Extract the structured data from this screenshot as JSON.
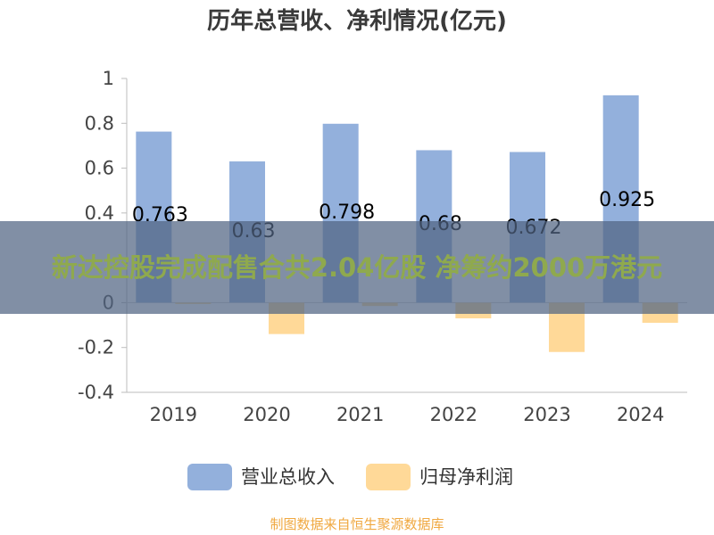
{
  "chart_data": {
    "type": "bar",
    "title": "历年总营收、净利情况(亿元)",
    "categories": [
      "2019",
      "2020",
      "2021",
      "2022",
      "2023",
      "2024"
    ],
    "series": [
      {
        "name": "营业总收入",
        "values": [
          0.763,
          0.63,
          0.798,
          0.68,
          0.672,
          0.925
        ],
        "color": "#93b0dc"
      },
      {
        "name": "归母净利润",
        "values": [
          -0.006,
          -0.14,
          -0.015,
          -0.07,
          -0.22,
          -0.09
        ],
        "color": "#ffd998"
      }
    ],
    "data_labels": [
      "0.763",
      "0.63",
      "0.798",
      "0.68",
      "0.672",
      "0.925"
    ],
    "y_ticks": [
      "1",
      "0.8",
      "0.6",
      "0.4",
      "0",
      "-0.2",
      "-0.4"
    ],
    "ylim": [
      -0.4,
      1
    ],
    "xlabel": "",
    "ylabel": "",
    "grid": false,
    "legend_position": "bottom",
    "source": "制图数据来自恒生聚源数据库"
  },
  "overlay": {
    "headline": "新达控股完成配售合共2.04亿股 净筹约2000万港元"
  }
}
